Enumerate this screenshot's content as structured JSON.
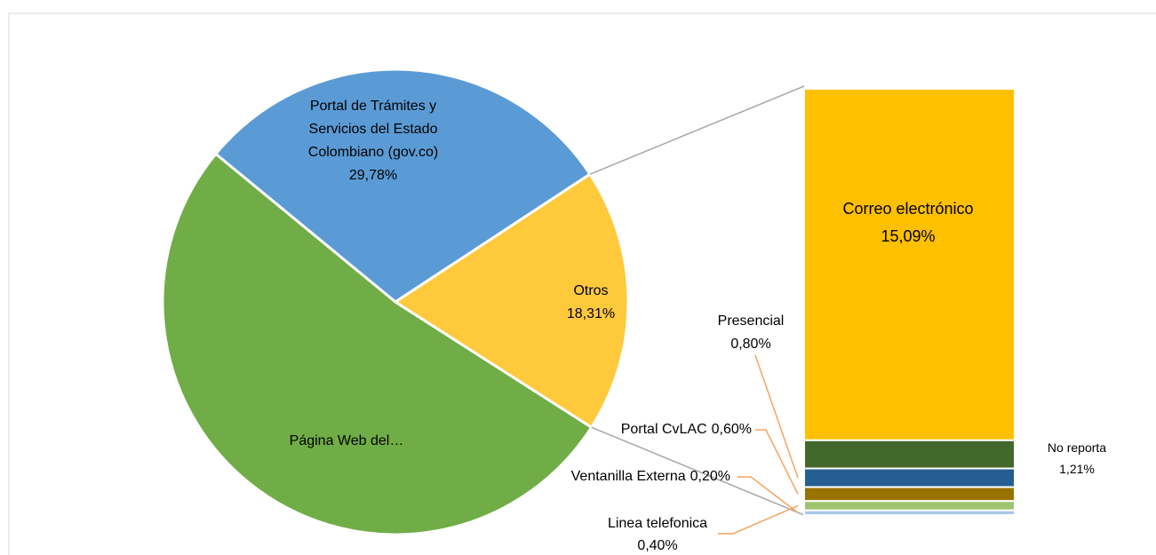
{
  "chart_data": {
    "type": "pie",
    "categories": [
      "Portal de Trámites y Servicios del Estado Colombiano (gov.co)",
      "Página Web del…",
      "Otros"
    ],
    "values": [
      29.78,
      51.91,
      18.31
    ],
    "value_labels": [
      "29,78%",
      null,
      "18,31%"
    ],
    "colors": [
      "#5b9bd5",
      "#70ad47",
      "#ffc93c"
    ],
    "bar": {
      "categories": [
        "Correo electrónico",
        "No reporta",
        "Presencial",
        "Portal CvLAC",
        "Linea telefonica",
        "Ventanilla Externa"
      ],
      "values": [
        15.09,
        1.21,
        0.8,
        0.6,
        0.4,
        0.2
      ],
      "value_labels": [
        "15,09%",
        "1,21%",
        "0,80%",
        "0,60%",
        "0,40%",
        "0,20%"
      ],
      "colors": [
        "#ffc000",
        "#43682b",
        "#255e91",
        "#997300",
        "#9dc46f",
        "#a5c8e8"
      ]
    }
  }
}
